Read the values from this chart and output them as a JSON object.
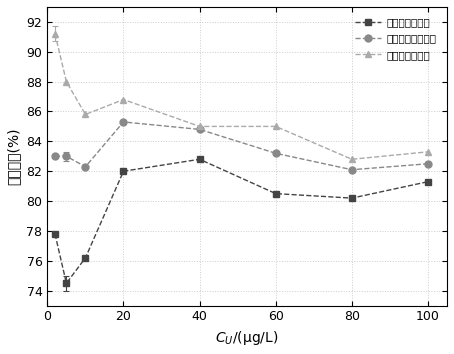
{
  "x": [
    2,
    5,
    10,
    20,
    40,
    60,
    80,
    100
  ],
  "series1": {
    "label": "原始铁树叶粉末",
    "y": [
      77.8,
      74.5,
      76.2,
      82.0,
      82.8,
      80.5,
      80.2,
      81.3
    ],
    "marker": "s",
    "color": "#444444",
    "yerr_index": 1,
    "yerr_val": 0.5
  },
  "series2": {
    "label": "水热铁树叶炭粉末",
    "y": [
      83.0,
      83.0,
      82.3,
      85.3,
      84.8,
      83.2,
      82.1,
      82.5
    ],
    "marker": "o",
    "color": "#888888",
    "yerr_index": 1,
    "yerr_val": 0.3
  },
  "series3": {
    "label": "磷酸改性铁树叶",
    "y": [
      91.2,
      88.0,
      85.8,
      86.8,
      85.0,
      85.0,
      82.8,
      83.3
    ],
    "marker": "^",
    "color": "#aaaaaa",
    "yerr_index": 0,
    "yerr_val": 0.5
  },
  "xlabel": "$C_U$/(μg/L)",
  "ylabel": "吸附效率(%)",
  "xlim": [
    0,
    105
  ],
  "ylim": [
    73,
    93
  ],
  "yticks": [
    74,
    76,
    78,
    80,
    82,
    84,
    86,
    88,
    90,
    92
  ],
  "xticks": [
    0,
    20,
    40,
    60,
    80,
    100
  ],
  "line_style": "--",
  "line_width": 1.0,
  "marker_size": 5,
  "background_color": "#ffffff",
  "grid_color": "#cccccc",
  "legend_loc": "upper right"
}
